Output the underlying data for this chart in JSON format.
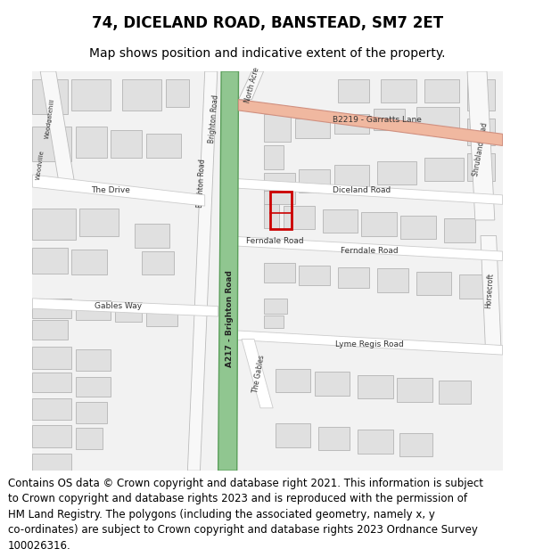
{
  "title": "74, DICELAND ROAD, BANSTEAD, SM7 2ET",
  "subtitle": "Map shows position and indicative extent of the property.",
  "footer_lines": "Contains OS data © Crown copyright and database right 2021. This information is subject\nto Crown copyright and database rights 2023 and is reproduced with the permission of\nHM Land Registry. The polygons (including the associated geometry, namely x, y\nco-ordinates) are subject to Crown copyright and database rights 2023 Ordnance Survey\n100026316.",
  "bg_color": "#f2f2f2",
  "road_white": "#ffffff",
  "road_outline": "#cccccc",
  "a217_fill": "#90c690",
  "a217_edge": "#5a9e5a",
  "b2219_fill": "#f0b8a0",
  "b2219_edge": "#d09080",
  "bldg_fill": "#e0e0e0",
  "bldg_edge": "#aaaaaa",
  "plot_color": "#cc0000",
  "title_fs": 12,
  "subtitle_fs": 10,
  "footer_fs": 8.5
}
